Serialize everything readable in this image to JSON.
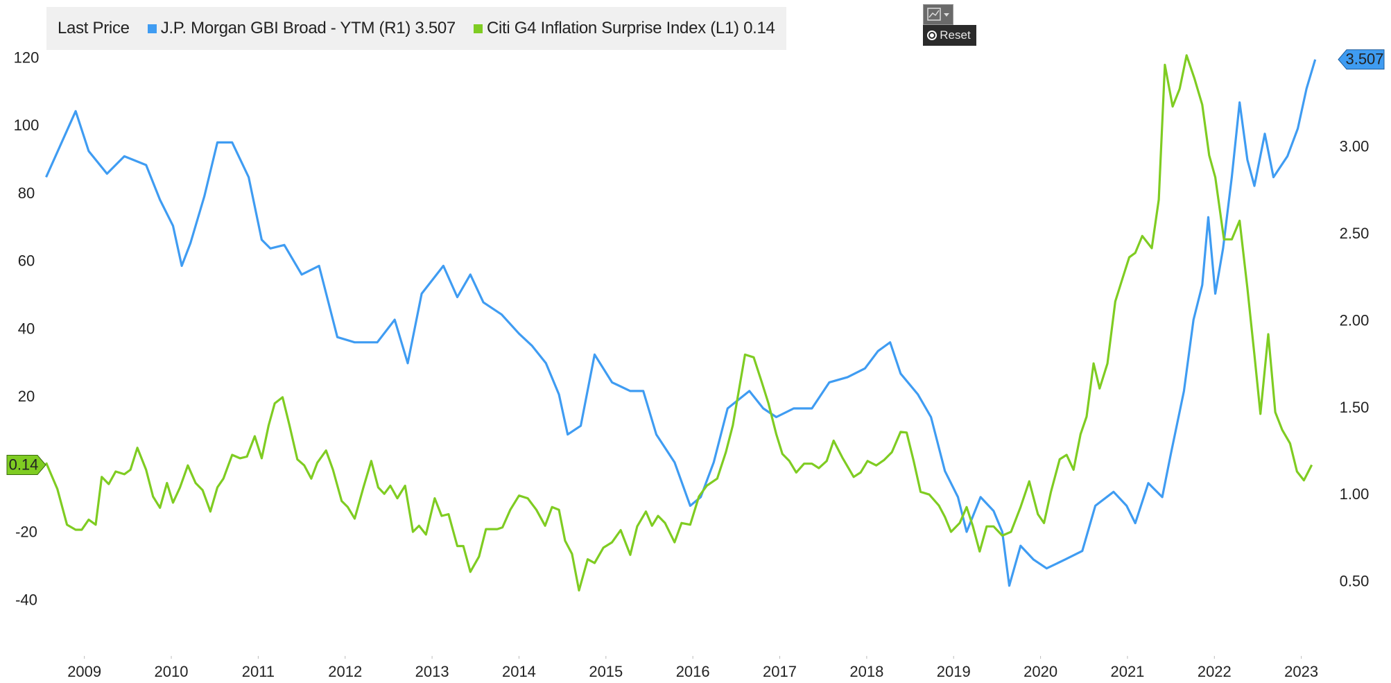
{
  "chart_data": {
    "type": "line",
    "legend_title": "Last Price",
    "xlim": [
      2009.0,
      2023.75
    ],
    "xticks": [
      {
        "value": 2009.5,
        "label": "2009"
      },
      {
        "value": 2010.5,
        "label": "2010"
      },
      {
        "value": 2011.5,
        "label": "2011"
      },
      {
        "value": 2012.5,
        "label": "2012"
      },
      {
        "value": 2013.5,
        "label": "2013"
      },
      {
        "value": 2014.5,
        "label": "2014"
      },
      {
        "value": 2015.5,
        "label": "2015"
      },
      {
        "value": 2016.5,
        "label": "2016"
      },
      {
        "value": 2017.5,
        "label": "2017"
      },
      {
        "value": 2018.5,
        "label": "2018"
      },
      {
        "value": 2019.5,
        "label": "2019"
      },
      {
        "value": 2020.5,
        "label": "2020"
      },
      {
        "value": 2021.5,
        "label": "2021"
      },
      {
        "value": 2022.5,
        "label": "2022"
      },
      {
        "value": 2023.5,
        "label": "2023"
      }
    ],
    "ylim": [
      -55,
      123
    ],
    "yticks": [
      -40,
      -20,
      20,
      40,
      60,
      80,
      100,
      120
    ],
    "y2lim": [
      0.1,
      3.57
    ],
    "y2ticks": [
      {
        "value": 0.5,
        "label": "0.50"
      },
      {
        "value": 1.0,
        "label": "1.00"
      },
      {
        "value": 1.5,
        "label": "1.50"
      },
      {
        "value": 2.0,
        "label": "2.00"
      },
      {
        "value": 2.5,
        "label": "2.50"
      },
      {
        "value": 3.0,
        "label": "3.00"
      }
    ],
    "grid": false,
    "series": [
      {
        "name": "J.P. Morgan GBI Broad - YTM  (R1)",
        "last_label": "3.507",
        "color": "#3f9cf2",
        "axis": "y2",
        "x": [
          2009.06,
          2009.4,
          2009.55,
          2009.76,
          2009.96,
          2010.21,
          2010.37,
          2010.52,
          2010.62,
          2010.72,
          2010.88,
          2011.03,
          2011.2,
          2011.39,
          2011.54,
          2011.64,
          2011.8,
          2012.0,
          2012.2,
          2012.41,
          2012.61,
          2012.87,
          2013.07,
          2013.22,
          2013.38,
          2013.63,
          2013.79,
          2013.94,
          2014.09,
          2014.3,
          2014.5,
          2014.65,
          2014.81,
          2014.96,
          2015.06,
          2015.21,
          2015.37,
          2015.57,
          2015.78,
          2015.93,
          2016.08,
          2016.29,
          2016.47,
          2016.59,
          2016.74,
          2016.9,
          2017.15,
          2017.31,
          2017.46,
          2017.66,
          2017.87,
          2018.07,
          2018.28,
          2018.48,
          2018.63,
          2018.77,
          2018.89,
          2019.09,
          2019.24,
          2019.4,
          2019.55,
          2019.65,
          2019.81,
          2019.96,
          2020.06,
          2020.14,
          2020.27,
          2020.42,
          2020.57,
          2020.78,
          2020.98,
          2021.13,
          2021.34,
          2021.49,
          2021.59,
          2021.74,
          2021.9,
          2022.0,
          2022.15,
          2022.26,
          2022.36,
          2022.43,
          2022.51,
          2022.6,
          2022.7,
          2022.79,
          2022.88,
          2022.96,
          2023.08,
          2023.18,
          2023.34,
          2023.46,
          2023.56,
          2023.66
        ],
        "values": [
          2.83,
          3.21,
          2.98,
          2.85,
          2.95,
          2.9,
          2.7,
          2.55,
          2.32,
          2.45,
          2.72,
          3.03,
          3.03,
          2.83,
          2.47,
          2.42,
          2.44,
          2.27,
          2.32,
          1.91,
          1.88,
          1.88,
          2.01,
          1.76,
          2.16,
          2.32,
          2.14,
          2.27,
          2.11,
          2.04,
          1.93,
          1.86,
          1.76,
          1.58,
          1.35,
          1.4,
          1.81,
          1.65,
          1.6,
          1.6,
          1.35,
          1.19,
          0.94,
          0.99,
          1.19,
          1.5,
          1.6,
          1.5,
          1.45,
          1.5,
          1.5,
          1.65,
          1.68,
          1.73,
          1.83,
          1.88,
          1.7,
          1.58,
          1.45,
          1.14,
          0.99,
          0.79,
          0.99,
          0.91,
          0.79,
          0.48,
          0.71,
          0.63,
          0.58,
          0.63,
          0.68,
          0.94,
          1.02,
          0.94,
          0.84,
          1.07,
          0.99,
          1.24,
          1.6,
          2.01,
          2.21,
          2.6,
          2.16,
          2.42,
          2.83,
          3.26,
          2.93,
          2.78,
          3.08,
          2.83,
          2.95,
          3.11,
          3.34,
          3.507
        ]
      },
      {
        "name": "Citi G4 Inflation Surprise Index  (L1)",
        "last_label": "0.14",
        "color": "#7fcc22",
        "axis": "y",
        "x": [
          2009.06,
          2009.19,
          2009.3,
          2009.4,
          2009.47,
          2009.55,
          2009.63,
          2009.7,
          2009.78,
          2009.86,
          2009.96,
          2010.03,
          2010.11,
          2010.21,
          2010.29,
          2010.37,
          2010.45,
          2010.52,
          2010.6,
          2010.69,
          2010.78,
          2010.86,
          2010.95,
          2011.03,
          2011.1,
          2011.2,
          2011.29,
          2011.37,
          2011.46,
          2011.54,
          2011.62,
          2011.69,
          2011.78,
          2011.86,
          2011.95,
          2012.03,
          2012.11,
          2012.18,
          2012.28,
          2012.36,
          2012.46,
          2012.53,
          2012.61,
          2012.71,
          2012.8,
          2012.88,
          2012.95,
          2013.02,
          2013.1,
          2013.19,
          2013.28,
          2013.35,
          2013.43,
          2013.53,
          2013.61,
          2013.69,
          2013.79,
          2013.86,
          2013.94,
          2014.04,
          2014.12,
          2014.25,
          2014.31,
          2014.4,
          2014.5,
          2014.6,
          2014.7,
          2014.8,
          2014.88,
          2014.96,
          2015.03,
          2015.11,
          2015.19,
          2015.29,
          2015.37,
          2015.47,
          2015.57,
          2015.67,
          2015.78,
          2015.86,
          2015.96,
          2016.03,
          2016.1,
          2016.18,
          2016.29,
          2016.37,
          2016.47,
          2016.57,
          2016.66,
          2016.78,
          2016.88,
          2016.96,
          2017.03,
          2017.1,
          2017.2,
          2017.29,
          2017.37,
          2017.46,
          2017.53,
          2017.61,
          2017.69,
          2017.78,
          2017.87,
          2017.95,
          2018.04,
          2018.12,
          2018.22,
          2018.35,
          2018.43,
          2018.51,
          2018.61,
          2018.7,
          2018.79,
          2018.89,
          2018.96,
          2019.04,
          2019.12,
          2019.22,
          2019.33,
          2019.4,
          2019.47,
          2019.57,
          2019.65,
          2019.72,
          2019.8,
          2019.88,
          2019.96,
          2020.06,
          2020.16,
          2020.27,
          2020.37,
          2020.47,
          2020.54,
          2020.62,
          2020.72,
          2020.8,
          2020.88,
          2020.96,
          2021.03,
          2021.11,
          2021.18,
          2021.27,
          2021.36,
          2021.44,
          2021.52,
          2021.59,
          2021.67,
          2021.78,
          2021.86,
          2021.93,
          2022.02,
          2022.1,
          2022.18,
          2022.27,
          2022.36,
          2022.44,
          2022.51,
          2022.61,
          2022.7,
          2022.79,
          2022.88,
          2022.96,
          2023.03,
          2023.12,
          2023.2,
          2023.28,
          2023.37,
          2023.45,
          2023.53,
          2023.62
        ],
        "values": [
          0.8,
          -7,
          -17.5,
          -19,
          -19,
          -16,
          -17.5,
          -3.4,
          -5.5,
          -1.8,
          -2.6,
          -1.3,
          5.2,
          -1.3,
          -9.2,
          -12.5,
          -5.2,
          -11,
          -6.5,
          0,
          -5.2,
          -7.3,
          -13.6,
          -6.5,
          -3.9,
          3.1,
          2.1,
          2.6,
          8.6,
          2.1,
          11.8,
          18.3,
          20.1,
          11.8,
          1.8,
          0,
          -3.9,
          0.8,
          4.4,
          -1.3,
          -10.5,
          -12.3,
          -15.7,
          -6.5,
          1.3,
          -6.5,
          -8.4,
          -6.0,
          -9.7,
          -6.0,
          -19.6,
          -17.8,
          -20.4,
          -9.7,
          -14.9,
          -14.4,
          -23.8,
          -23.8,
          -31.4,
          -26.9,
          -18.8,
          -18.8,
          -18.3,
          -13.1,
          -8.9,
          -9.7,
          -13.1,
          -17.8,
          -12.3,
          -13.1,
          -22.2,
          -26.1,
          -36.9,
          -27.7,
          -28.8,
          -24.3,
          -22.7,
          -19.1,
          -26.4,
          -18.0,
          -13.6,
          -17.8,
          -14.9,
          -17.0,
          -22.7,
          -17.0,
          -17.5,
          -9.2,
          -6.0,
          -3.9,
          3.9,
          11.8,
          22.2,
          32.7,
          31.9,
          24.8,
          18.3,
          9.2,
          3.4,
          1.3,
          -2.1,
          0.5,
          0.5,
          -0.8,
          1.3,
          7.3,
          2.3,
          -3.4,
          -2.1,
          1.3,
          0,
          1.6,
          3.9,
          9.9,
          9.7,
          1.3,
          -7.8,
          -8.6,
          -11.8,
          -15.2,
          -19.6,
          -17.0,
          -12.3,
          -17.8,
          -25.4,
          -18.0,
          -18.0,
          -20.7,
          -19.6,
          -12.3,
          -4.7,
          -14.4,
          -17.0,
          -7.8,
          1.8,
          3.1,
          -1.3,
          9.2,
          14.4,
          30.1,
          22.7,
          30.1,
          48.4,
          54.9,
          61.4,
          62.7,
          67.7,
          64.1,
          78.4,
          118.2,
          105.9,
          111.1,
          121.0,
          114.2,
          106.4,
          91.5,
          85.0,
          66.7,
          66.7,
          72.2,
          52.3,
          32.7,
          15.2,
          38.7,
          15.7,
          10.5,
          6.5,
          -1.8,
          -4.4,
          0.14
        ]
      }
    ]
  },
  "toolbar": {
    "reset": "Reset"
  }
}
